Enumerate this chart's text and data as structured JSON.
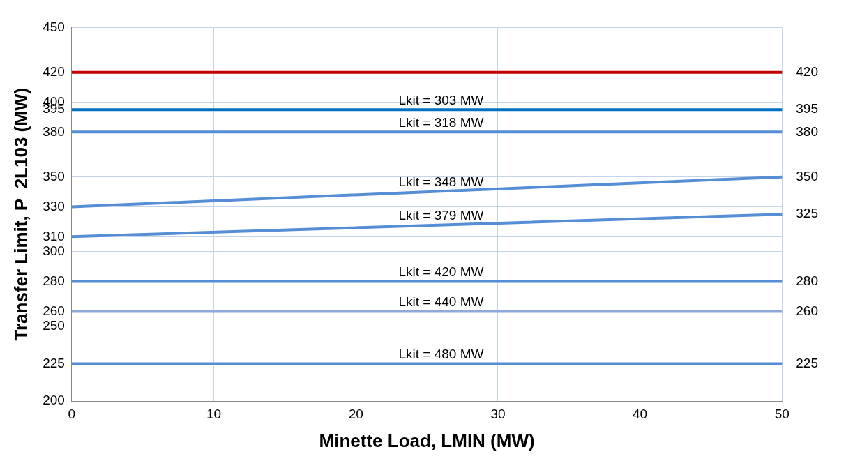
{
  "chart_data": {
    "type": "line",
    "xlabel": "Minette Load, LMIN (MW)",
    "ylabel": "Transfer Limit, P_2L103 (MW)",
    "x": [
      0,
      50
    ],
    "xlim": [
      0,
      50
    ],
    "xticks": [
      0,
      10,
      20,
      30,
      40,
      50
    ],
    "ylim": [
      200,
      450
    ],
    "yticks": [
      200,
      225,
      250,
      260,
      280,
      300,
      310,
      330,
      350,
      380,
      395,
      400,
      420,
      450
    ],
    "y2lim": [
      200,
      450
    ],
    "y2ticks": [
      225,
      260,
      280,
      325,
      350,
      380,
      395,
      420
    ],
    "grid": true,
    "legend": false,
    "marker": "none",
    "line_style": "solid",
    "series": [
      {
        "color": "#c00000",
        "values": [
          420,
          420
        ]
      },
      {
        "name": "Lkit = 303 MW",
        "color": "#0070c0",
        "values": [
          395,
          395
        ]
      },
      {
        "name": "Lkit = 318 MW",
        "color": "#558ed5",
        "values": [
          380,
          380
        ]
      },
      {
        "name": "Lkit = 348 MW",
        "color": "#558ed5",
        "values": [
          330,
          350
        ]
      },
      {
        "name": "Lkit = 379 MW",
        "color": "#558ed5",
        "values": [
          310,
          325
        ]
      },
      {
        "name": "Lkit = 420 MW",
        "color": "#558ed5",
        "values": [
          280,
          280
        ]
      },
      {
        "name": "Lkit = 440 MW",
        "color": "#8ea9db",
        "values": [
          260,
          260
        ]
      },
      {
        "name": "Lkit = 480 MW",
        "color": "#558ed5",
        "values": [
          225,
          225
        ]
      }
    ]
  }
}
